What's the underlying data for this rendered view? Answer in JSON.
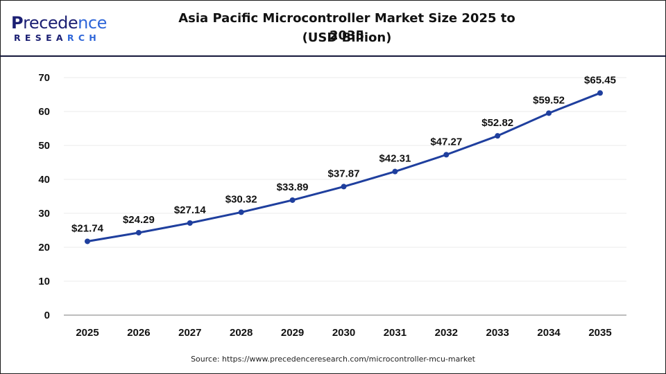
{
  "header": {
    "logo_primary": "Precedence",
    "logo_secondary": "RESEARCH",
    "title_line1": "Asia Pacific Microcontroller Market Size 2025 to 2035",
    "title_line2": "(USD Billion)"
  },
  "footer": {
    "source": "Source: https://www.precedenceresearch.com/microcontroller-mcu-market"
  },
  "colors": {
    "line": "#1f3f9e",
    "brand_dark": "#1b1f73",
    "brand_accent": "#2f66d8",
    "grid": "#ebebeb",
    "axis": "#bdbdbd"
  },
  "chart_data": {
    "type": "line",
    "title": "Asia Pacific Microcontroller Market Size 2025 to 2035 (USD Billion)",
    "xlabel": "",
    "ylabel": "",
    "categories": [
      "2025",
      "2026",
      "2027",
      "2028",
      "2029",
      "2030",
      "2031",
      "2032",
      "2033",
      "2034",
      "2035"
    ],
    "series": [
      {
        "name": "Market Size (USD Billion)",
        "values": [
          21.74,
          24.29,
          27.14,
          30.32,
          33.89,
          37.87,
          42.31,
          47.27,
          52.82,
          59.52,
          65.45
        ],
        "labels": [
          "$21.74",
          "$24.29",
          "$27.14",
          "$30.32",
          "$33.89",
          "$37.87",
          "$42.31",
          "$47.27",
          "$52.82",
          "$59.52",
          "$65.45"
        ]
      }
    ],
    "yticks": [
      0,
      10,
      20,
      30,
      40,
      50,
      60,
      70
    ],
    "ylim": [
      0,
      70
    ],
    "grid": true,
    "legend": "none"
  }
}
